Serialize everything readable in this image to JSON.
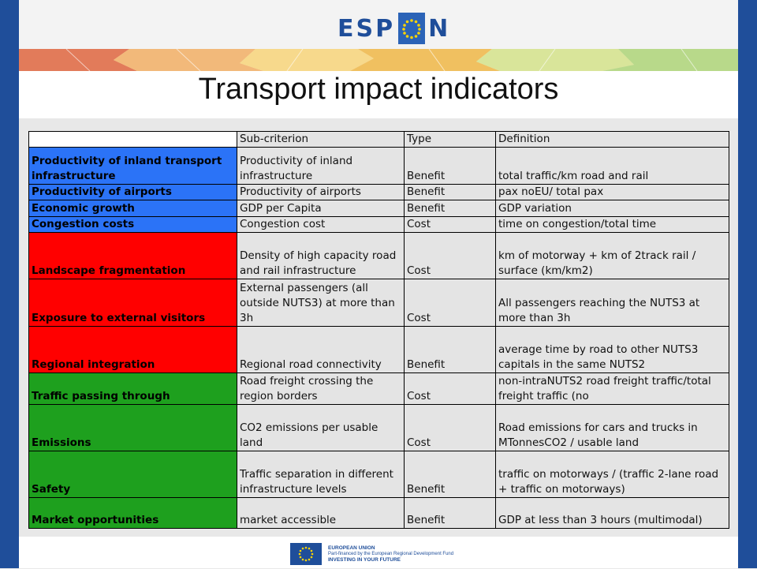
{
  "header": {
    "logo_text_left": "ESP",
    "logo_text_right": "N",
    "title": "Transport impact indicators"
  },
  "table": {
    "columns": [
      "",
      "Sub-criterion",
      "Type",
      "Definition"
    ],
    "rows": [
      {
        "criterion": "Productivity of inland transport infrastructure",
        "sub": "Productivity of inland infrastructure",
        "type": "Benefit",
        "definition": "total traffic/km road and rail",
        "color": "#2b73f7"
      },
      {
        "criterion": "Productivity of airports",
        "sub": "Productivity of airports",
        "type": "Benefit",
        "definition": "pax noEU/ total pax",
        "color": "#2b73f7"
      },
      {
        "criterion": "Economic growth",
        "sub": "GDP per Capita",
        "type": "Benefit",
        "definition": "GDP variation",
        "color": "#2b73f7"
      },
      {
        "criterion": "Congestion costs",
        "sub": "Congestion cost",
        "type": "Cost",
        "definition": "time on congestion/total time",
        "color": "#2b73f7"
      },
      {
        "criterion": "Landscape fragmentation",
        "sub": "Density of high capacity road and rail infrastructure",
        "type": "Cost",
        "definition": "km of motorway + km of 2track rail / surface (km/km2)",
        "color": "#ff0000"
      },
      {
        "criterion": "Exposure to external visitors",
        "sub": "External passengers (all outside NUTS3) at more than 3h",
        "type": "Cost",
        "definition": "All passengers reaching the NUTS3 at more than 3h",
        "color": "#ff0000"
      },
      {
        "criterion": "Regional integration",
        "sub": "Regional road connectivity",
        "type": "Benefit",
        "definition": "average time by road to other NUTS3 capitals in the same NUTS2",
        "color": "#ff0000"
      },
      {
        "criterion": "Traffic passing through",
        "sub": "Road freight crossing the region borders",
        "type": "Cost",
        "definition": "non-intraNUTS2 road freight traffic/total freight traffic (no",
        "color": "#1ea01e"
      },
      {
        "criterion": "Emissions",
        "sub": "CO2 emissions per usable land",
        "type": "Cost",
        "definition": "Road emissions for cars and trucks in MTonnesCO2 / usable land",
        "color": "#1ea01e"
      },
      {
        "criterion": "Safety",
        "sub": "Traffic separation in different infrastructure levels",
        "type": "Benefit",
        "definition": "traffic on motorways / (traffic 2-lane road + traffic on motorways)",
        "color": "#1ea01e"
      },
      {
        "criterion": "Market opportunities",
        "sub": "market accessible",
        "type": "Benefit",
        "definition": "GDP at less than 3 hours (multimodal)",
        "color": "#1ea01e"
      }
    ]
  },
  "footer": {
    "eu_line1": "EUROPEAN UNION",
    "eu_line2": "Part-financed by the European Regional Development Fund",
    "eu_line3": "INVESTING IN YOUR FUTURE"
  }
}
